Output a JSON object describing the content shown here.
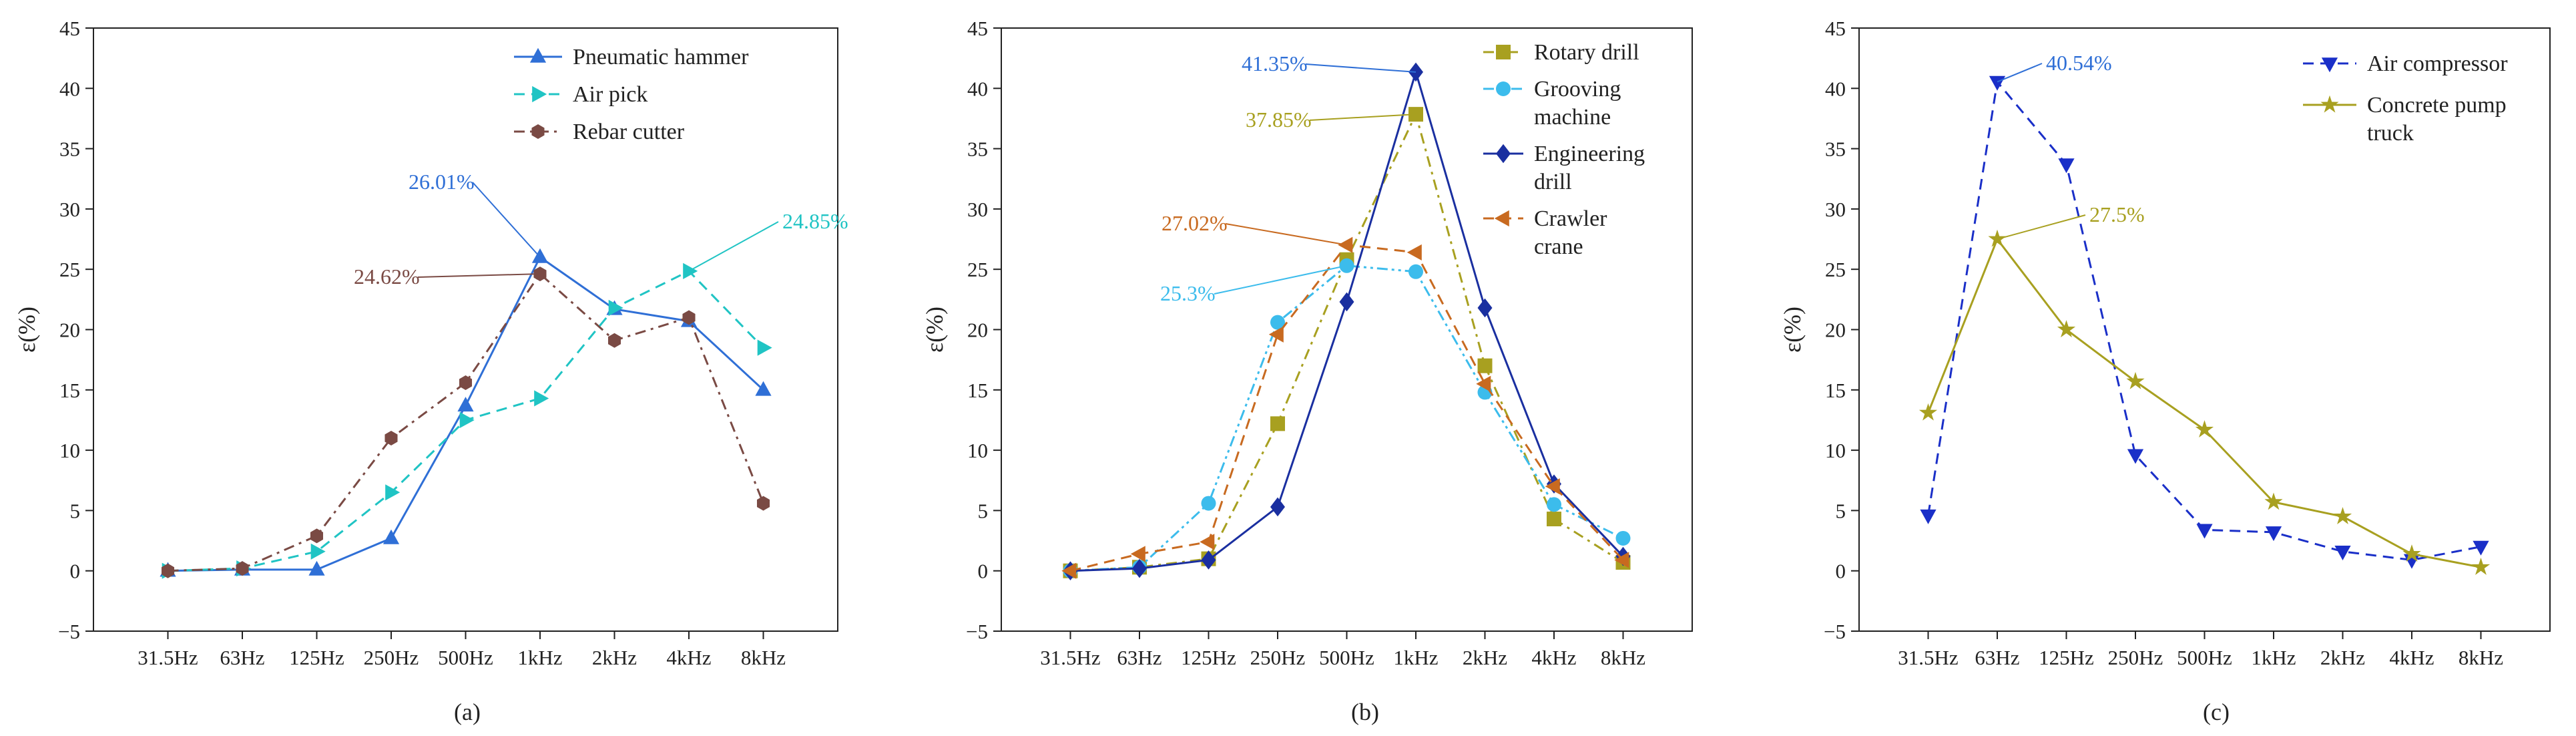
{
  "chart_data": [
    {
      "type": "line",
      "caption": "(a)",
      "ylabel": "ε(%)",
      "xlabel": "",
      "ylim": [
        -5,
        45
      ],
      "yticks": [
        -5,
        0,
        5,
        10,
        15,
        20,
        25,
        30,
        35,
        40,
        45
      ],
      "categories": [
        "31.5Hz",
        "63Hz",
        "125Hz",
        "250Hz",
        "500Hz",
        "1kHz",
        "2kHz",
        "4kHz",
        "8kHz"
      ],
      "series": [
        {
          "name": "Pneumatic hammer",
          "color": "#2f6fd6",
          "dash": "solid",
          "marker": "triangle-up",
          "values": [
            0,
            0.1,
            0.1,
            2.7,
            13.7,
            26.01,
            21.7,
            20.7,
            15.0
          ]
        },
        {
          "name": "Air pick",
          "color": "#20c4c4",
          "dash": "dashed",
          "marker": "triangle-right",
          "values": [
            0,
            0.2,
            1.6,
            6.5,
            12.5,
            14.3,
            21.8,
            24.85,
            18.5
          ]
        },
        {
          "name": "Rebar cutter",
          "color": "#7a4a44",
          "dash": "dashdot",
          "marker": "hexagon",
          "values": [
            0,
            0.2,
            2.9,
            11.0,
            15.6,
            24.62,
            19.1,
            21.0,
            5.6
          ]
        }
      ],
      "annotations": [
        {
          "text": "26.01%",
          "color": "#2f6fd6",
          "series": "Pneumatic hammer",
          "category": "1kHz"
        },
        {
          "text": "24.62%",
          "color": "#7a4a44",
          "series": "Rebar cutter",
          "category": "1kHz"
        },
        {
          "text": "24.85%",
          "color": "#20c4c4",
          "series": "Air pick",
          "category": "4kHz"
        }
      ],
      "legend": "top-right"
    },
    {
      "type": "line",
      "caption": "(b)",
      "ylabel": "ε(%)",
      "xlabel": "",
      "ylim": [
        -5,
        45
      ],
      "yticks": [
        -5,
        0,
        5,
        10,
        15,
        20,
        25,
        30,
        35,
        40,
        45
      ],
      "categories": [
        "31.5Hz",
        "63Hz",
        "125Hz",
        "250Hz",
        "500Hz",
        "1kHz",
        "2kHz",
        "4kHz",
        "8kHz"
      ],
      "series": [
        {
          "name": "Rotary drill",
          "color": "#a8a020",
          "dash": "dashdot",
          "marker": "square",
          "values": [
            0,
            0.3,
            1.0,
            12.2,
            25.8,
            37.85,
            17.0,
            4.3,
            0.7
          ]
        },
        {
          "name": "Grooving machine",
          "color": "#3cbcec",
          "dash": "dashdotdot",
          "marker": "circle",
          "values": [
            0,
            0.3,
            5.6,
            20.6,
            25.3,
            24.8,
            14.8,
            5.5,
            2.7
          ]
        },
        {
          "name": "Engineering drill",
          "color": "#1a2fa0",
          "dash": "solid",
          "marker": "diamond",
          "values": [
            0,
            0.2,
            0.9,
            5.3,
            22.3,
            41.35,
            21.8,
            7.2,
            1.2
          ]
        },
        {
          "name": "Crawler crane",
          "color": "#c86a20",
          "dash": "dashed",
          "marker": "triangle-left",
          "values": [
            0,
            1.4,
            2.4,
            19.6,
            27.02,
            26.4,
            15.5,
            7.0,
            0.9
          ]
        }
      ],
      "annotations": [
        {
          "text": "41.35%",
          "color": "#2f6fd6",
          "series": "Engineering drill",
          "category": "1kHz"
        },
        {
          "text": "37.85%",
          "color": "#a8a020",
          "series": "Rotary drill",
          "category": "1kHz"
        },
        {
          "text": "27.02%",
          "color": "#c86a20",
          "series": "Crawler crane",
          "category": "500Hz"
        },
        {
          "text": "25.3%",
          "color": "#3cbcec",
          "series": "Grooving machine",
          "category": "500Hz"
        }
      ],
      "legend": "top-right"
    },
    {
      "type": "line",
      "caption": "(c)",
      "ylabel": "ε(%)",
      "xlabel": "",
      "ylim": [
        -5,
        45
      ],
      "yticks": [
        -5,
        0,
        5,
        10,
        15,
        20,
        25,
        30,
        35,
        40,
        45
      ],
      "categories": [
        "31.5Hz",
        "63Hz",
        "125Hz",
        "250Hz",
        "500Hz",
        "1kHz",
        "2kHz",
        "4kHz",
        "8kHz"
      ],
      "series": [
        {
          "name": "Air compressor",
          "color": "#1a2fc8",
          "dash": "dashed",
          "marker": "triangle-down",
          "values": [
            4.6,
            40.54,
            33.7,
            9.6,
            3.4,
            3.2,
            1.6,
            0.9,
            2.0
          ]
        },
        {
          "name": "Concrete pump truck",
          "color": "#a8a020",
          "dash": "solid",
          "marker": "star",
          "values": [
            13.1,
            27.5,
            20.0,
            15.7,
            11.7,
            5.7,
            4.5,
            1.4,
            0.3
          ]
        }
      ],
      "annotations": [
        {
          "text": "40.54%",
          "color": "#2f6fd6",
          "series": "Air compressor",
          "category": "63Hz"
        },
        {
          "text": "27.5%",
          "color": "#a8a020",
          "series": "Concrete pump truck",
          "category": "63Hz"
        }
      ],
      "legend": "top-right"
    }
  ]
}
